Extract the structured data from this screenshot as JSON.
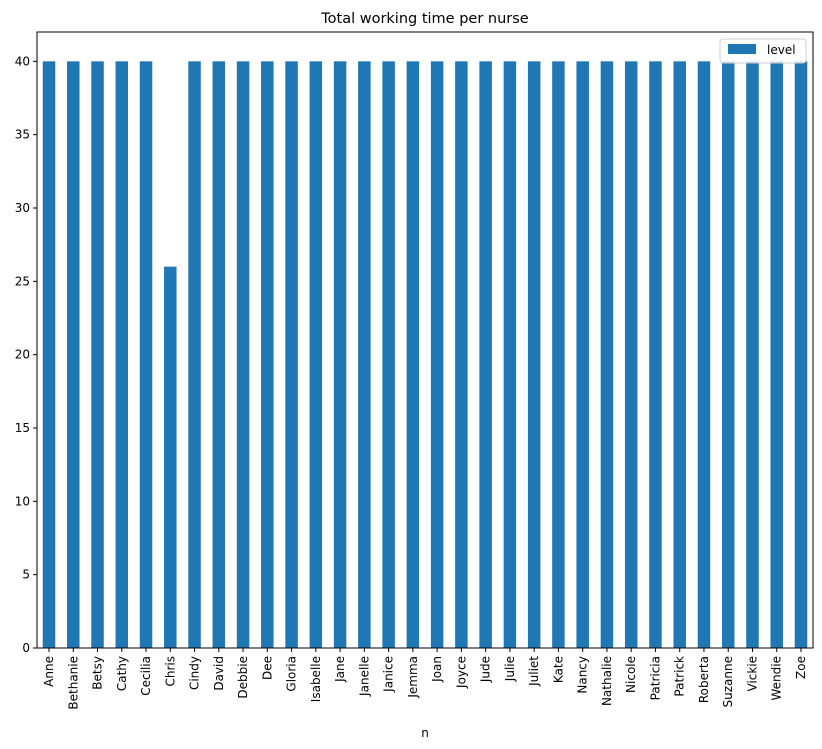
{
  "chart_data": {
    "type": "bar",
    "title": "Total working time per nurse",
    "xlabel": "n",
    "ylabel": "",
    "ylim": [
      0,
      42
    ],
    "yticks": [
      0,
      5,
      10,
      15,
      20,
      25,
      30,
      35,
      40
    ],
    "grid": false,
    "legend_position": "top-right",
    "categories": [
      "Anne",
      "Bethanie",
      "Betsy",
      "Cathy",
      "Cecilia",
      "Chris",
      "Cindy",
      "David",
      "Debbie",
      "Dee",
      "Gloria",
      "Isabelle",
      "Jane",
      "Janelle",
      "Janice",
      "Jemma",
      "Joan",
      "Joyce",
      "Jude",
      "Julie",
      "Juliet",
      "Kate",
      "Nancy",
      "Nathalie",
      "Nicole",
      "Patricia",
      "Patrick",
      "Roberta",
      "Suzanne",
      "Vickie",
      "Wendie",
      "Zoe"
    ],
    "series": [
      {
        "name": "level",
        "color": "#1f77b4",
        "values": [
          40,
          40,
          40,
          40,
          40,
          26,
          40,
          40,
          40,
          40,
          40,
          40,
          40,
          40,
          40,
          40,
          40,
          40,
          40,
          40,
          40,
          40,
          40,
          40,
          40,
          40,
          40,
          40,
          40,
          40,
          40,
          40
        ]
      }
    ]
  }
}
